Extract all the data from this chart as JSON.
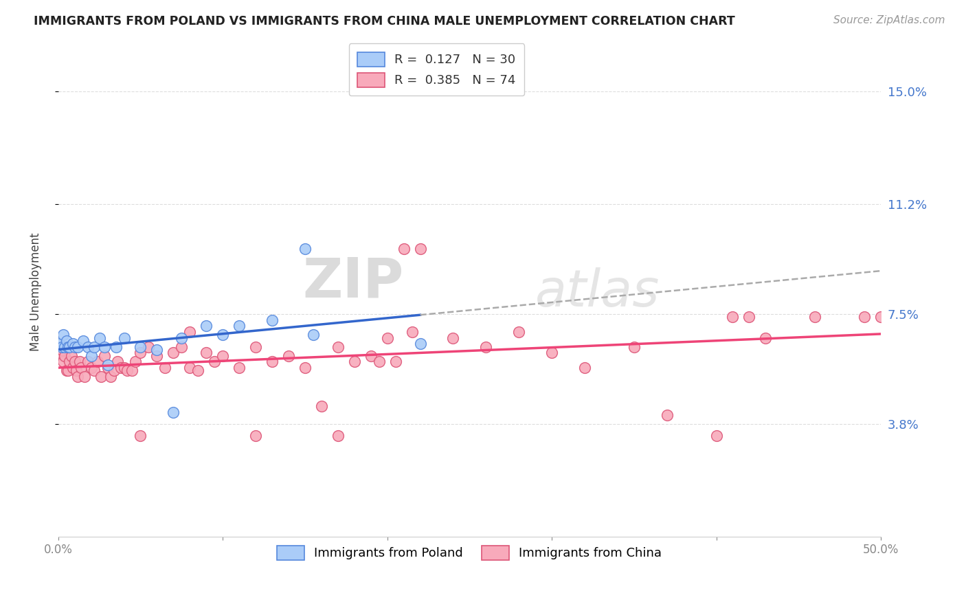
{
  "title": "IMMIGRANTS FROM POLAND VS IMMIGRANTS FROM CHINA MALE UNEMPLOYMENT CORRELATION CHART",
  "source": "Source: ZipAtlas.com",
  "ylabel": "Male Unemployment",
  "xlim": [
    0.0,
    0.5
  ],
  "ylim": [
    0.0,
    0.165
  ],
  "yticks": [
    0.038,
    0.075,
    0.112,
    0.15
  ],
  "ytick_labels": [
    "3.8%",
    "7.5%",
    "11.2%",
    "15.0%"
  ],
  "xticks": [
    0.0,
    0.1,
    0.2,
    0.3,
    0.4,
    0.5
  ],
  "xtick_labels": [
    "0.0%",
    "",
    "",
    "",
    "",
    "50.0%"
  ],
  "poland_color": "#aaccf8",
  "poland_edge": "#5588dd",
  "china_color": "#f8aabb",
  "china_edge": "#dd5577",
  "poland_R": 0.127,
  "poland_N": 30,
  "china_R": 0.385,
  "china_N": 74,
  "trend_poland_color": "#3366cc",
  "trend_china_color": "#ee4477",
  "trend_gray_color": "#aaaaaa",
  "watermark_zip": "ZIP",
  "watermark_atlas": "atlas",
  "poland_x": [
    0.001,
    0.002,
    0.003,
    0.004,
    0.005,
    0.006,
    0.007,
    0.009,
    0.01,
    0.012,
    0.015,
    0.018,
    0.02,
    0.022,
    0.025,
    0.028,
    0.03,
    0.035,
    0.04,
    0.05,
    0.06,
    0.07,
    0.075,
    0.09,
    0.1,
    0.11,
    0.13,
    0.15,
    0.155,
    0.22
  ],
  "poland_y": [
    0.065,
    0.064,
    0.068,
    0.064,
    0.066,
    0.064,
    0.064,
    0.065,
    0.064,
    0.064,
    0.066,
    0.064,
    0.061,
    0.064,
    0.067,
    0.064,
    0.058,
    0.064,
    0.067,
    0.064,
    0.063,
    0.042,
    0.067,
    0.071,
    0.068,
    0.071,
    0.073,
    0.097,
    0.068,
    0.065
  ],
  "china_x": [
    0.001,
    0.002,
    0.003,
    0.004,
    0.005,
    0.006,
    0.007,
    0.008,
    0.009,
    0.01,
    0.011,
    0.012,
    0.013,
    0.014,
    0.016,
    0.018,
    0.02,
    0.022,
    0.024,
    0.026,
    0.028,
    0.03,
    0.032,
    0.034,
    0.036,
    0.038,
    0.04,
    0.042,
    0.045,
    0.047,
    0.05,
    0.055,
    0.06,
    0.065,
    0.07,
    0.075,
    0.08,
    0.085,
    0.09,
    0.095,
    0.1,
    0.11,
    0.12,
    0.13,
    0.14,
    0.15,
    0.16,
    0.17,
    0.18,
    0.19,
    0.2,
    0.21,
    0.22,
    0.24,
    0.26,
    0.28,
    0.3,
    0.32,
    0.35,
    0.37,
    0.4,
    0.41,
    0.42,
    0.43,
    0.46,
    0.49,
    0.5,
    0.195,
    0.205,
    0.215,
    0.05,
    0.08,
    0.12,
    0.17
  ],
  "china_y": [
    0.062,
    0.063,
    0.059,
    0.061,
    0.056,
    0.056,
    0.059,
    0.061,
    0.057,
    0.059,
    0.056,
    0.054,
    0.059,
    0.057,
    0.054,
    0.059,
    0.057,
    0.056,
    0.059,
    0.054,
    0.061,
    0.057,
    0.054,
    0.056,
    0.059,
    0.057,
    0.057,
    0.056,
    0.056,
    0.059,
    0.062,
    0.064,
    0.061,
    0.057,
    0.062,
    0.064,
    0.057,
    0.056,
    0.062,
    0.059,
    0.061,
    0.057,
    0.064,
    0.059,
    0.061,
    0.057,
    0.044,
    0.064,
    0.059,
    0.061,
    0.067,
    0.097,
    0.097,
    0.067,
    0.064,
    0.069,
    0.062,
    0.057,
    0.064,
    0.041,
    0.034,
    0.074,
    0.074,
    0.067,
    0.074,
    0.074,
    0.074,
    0.059,
    0.059,
    0.069,
    0.034,
    0.069,
    0.034,
    0.034
  ]
}
